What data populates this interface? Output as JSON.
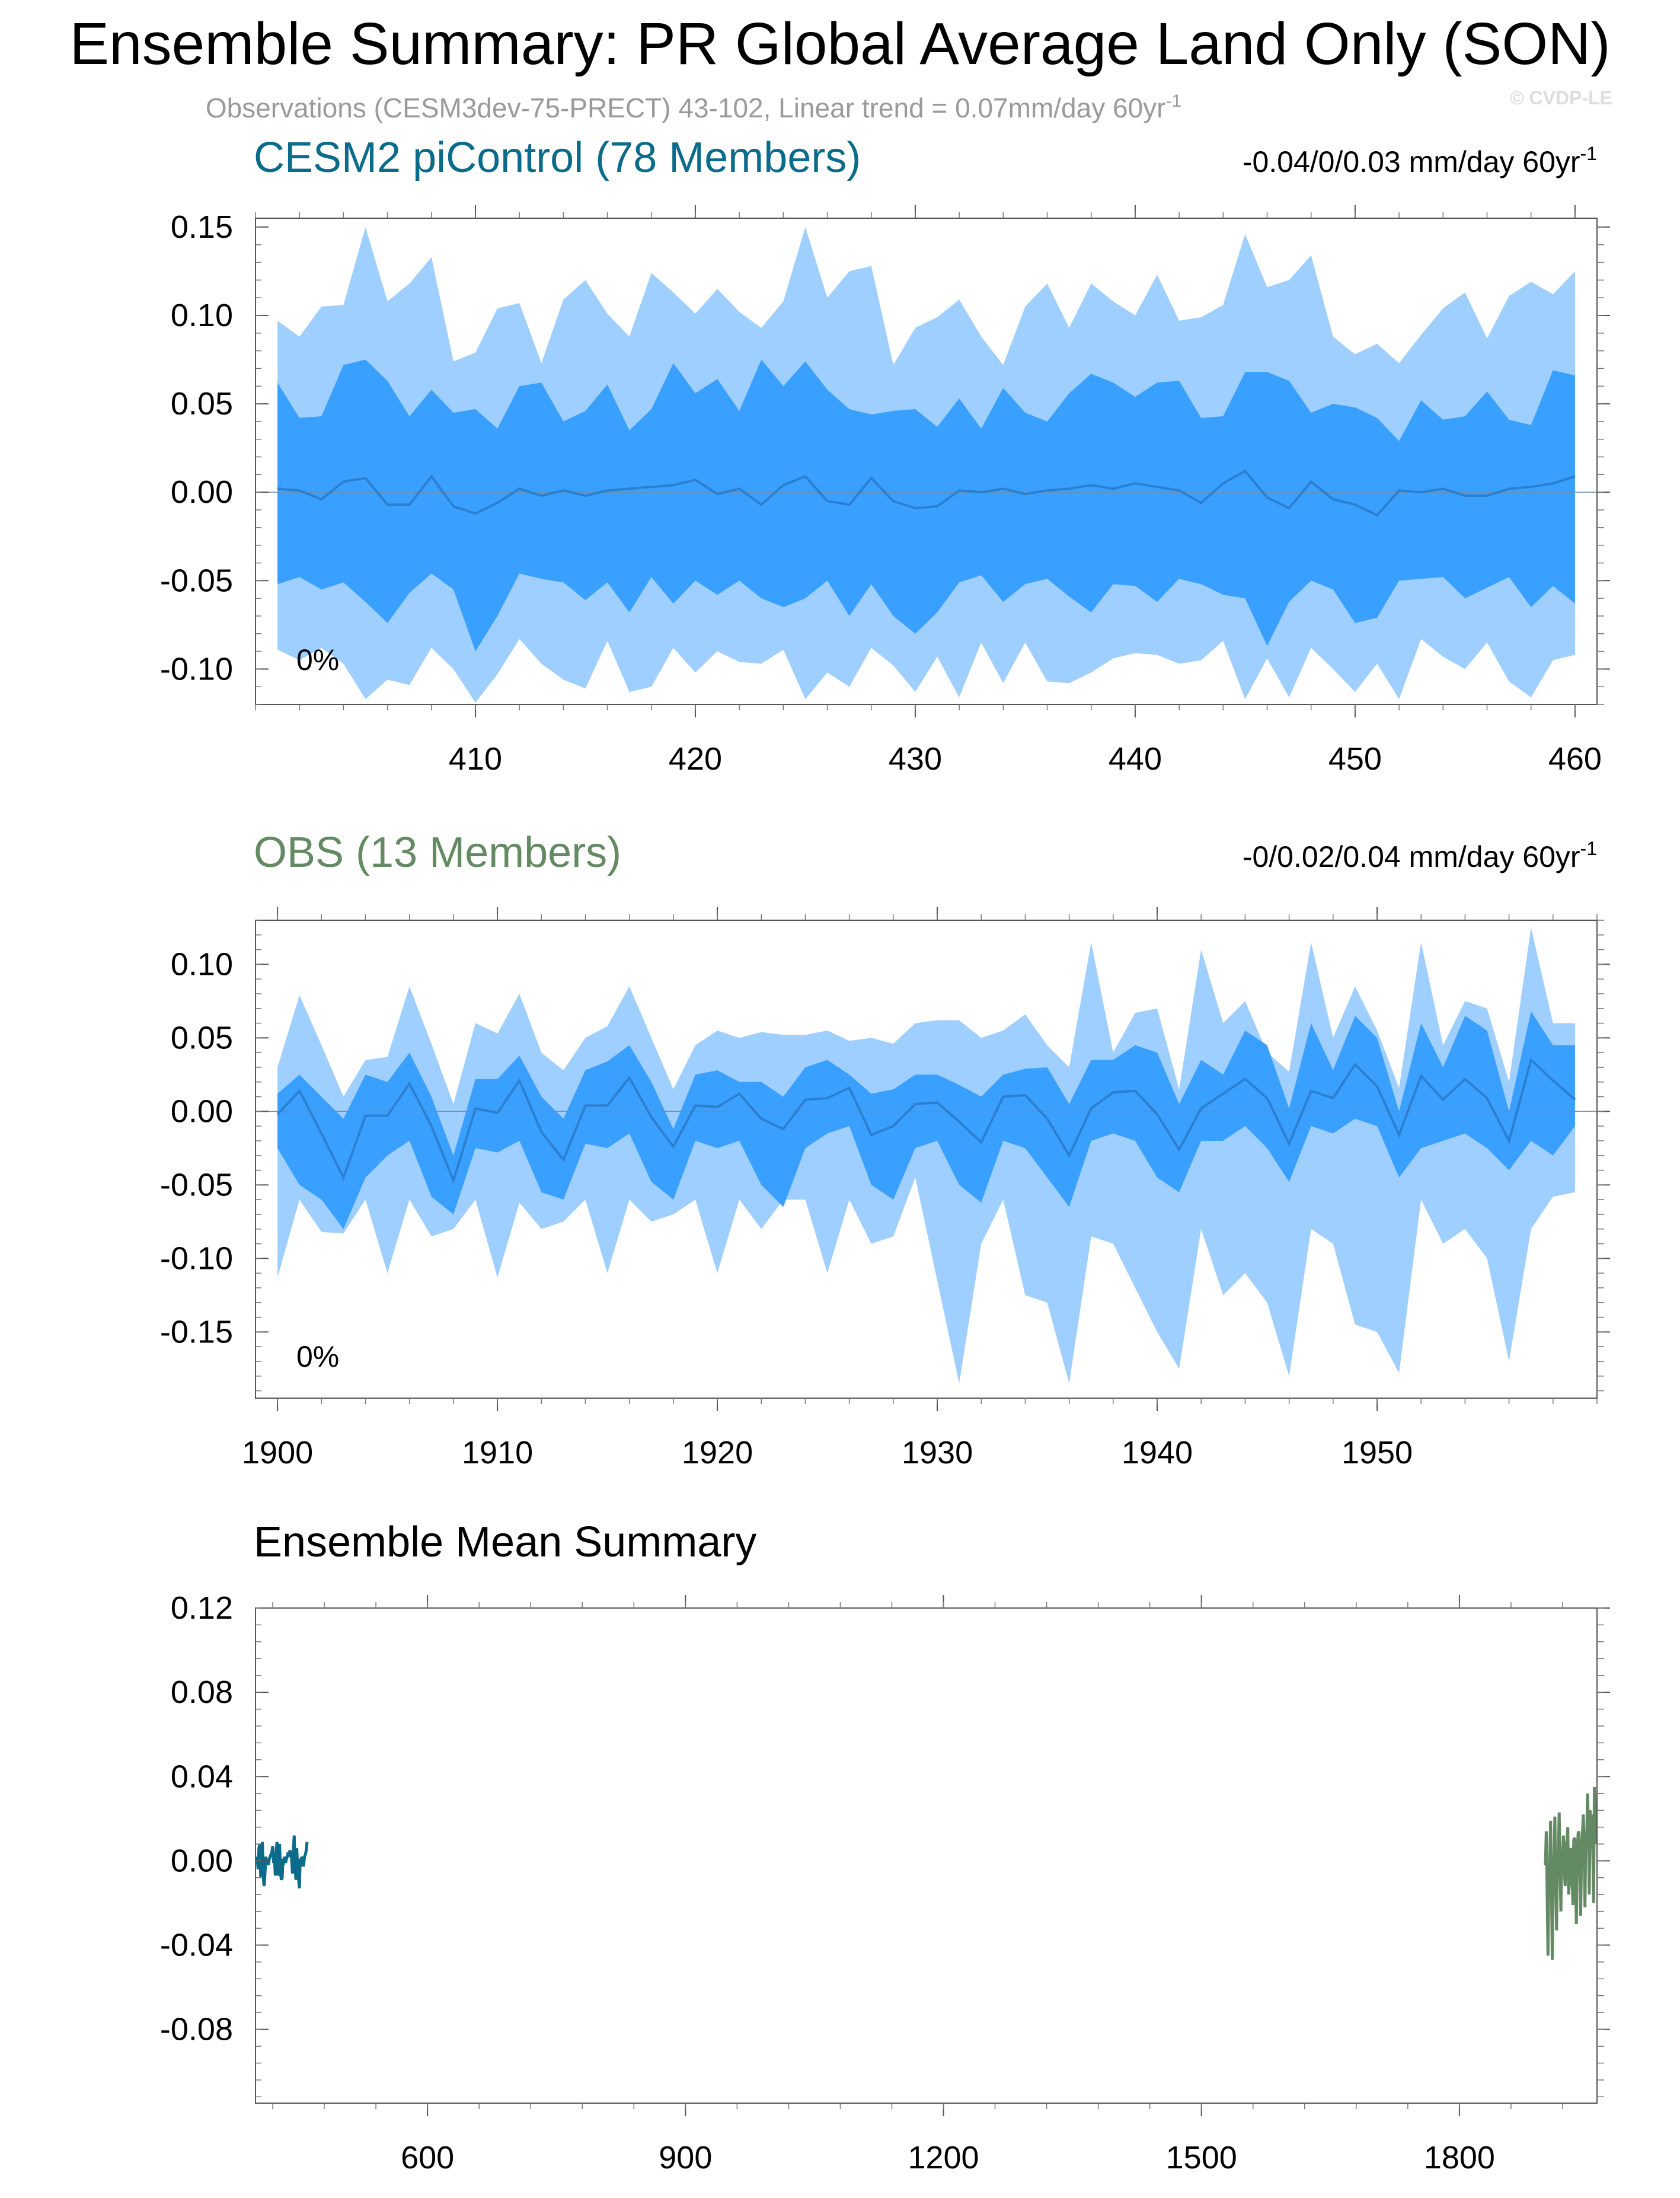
{
  "figure": {
    "title": "Ensemble Summary: PR Global Average Land Only (SON)",
    "subtitle": "Observations (CESM3dev-75-PRECT) 43-102, Linear trend = 0.07mm/day 60yr",
    "subtitle_sup": "-1",
    "watermark": "© CVDP-LE"
  },
  "colors": {
    "band_outer": "#9fcfff",
    "band_inner": "#3aa0ff",
    "mean_line": "#2b7fd0",
    "cesm_title": "#0b6b8a",
    "obs_title": "#638a63",
    "axis": "#000000",
    "subtitle": "#9a9a9a"
  },
  "panels": {
    "cesm": {
      "title": "CESM2 piControl (78 Members)",
      "trend_label": "-0.04/0/0.03 mm/day 60yr",
      "trend_sup": "-1",
      "percent_label": "0%"
    },
    "obs": {
      "title": "OBS (13 Members)",
      "trend_label": "-0/0.02/0.04 mm/day 60yr",
      "trend_sup": "-1",
      "percent_label": "0%"
    },
    "summary": {
      "title": "Ensemble Mean Summary"
    }
  },
  "chart_data": [
    {
      "id": "cesm",
      "type": "area",
      "x_start": 401,
      "x_end": 460,
      "xlim": [
        400,
        461
      ],
      "ylim": [
        -0.12,
        0.155
      ],
      "xticks": [
        410,
        420,
        430,
        440,
        450,
        460
      ],
      "yticks": [
        0.15,
        0.1,
        0.05,
        0.0,
        -0.05,
        -0.1
      ],
      "ytick_labels": [
        "0.15",
        "0.10",
        "0.05",
        "0.00",
        "-0.05",
        "-0.10"
      ],
      "series": [
        {
          "role": "outer_upper",
          "values": [
            0.097,
            0.088,
            0.105,
            0.106,
            0.15,
            0.108,
            0.118,
            0.133,
            0.074,
            0.079,
            0.104,
            0.107,
            0.073,
            0.109,
            0.12,
            0.101,
            0.088,
            0.124,
            0.113,
            0.101,
            0.115,
            0.102,
            0.093,
            0.108,
            0.15,
            0.11,
            0.125,
            0.128,
            0.072,
            0.093,
            0.099,
            0.109,
            0.088,
            0.072,
            0.105,
            0.118,
            0.093,
            0.118,
            0.108,
            0.1,
            0.123,
            0.097,
            0.099,
            0.106,
            0.146,
            0.116,
            0.12,
            0.134,
            0.088,
            0.078,
            0.084,
            0.073,
            0.089,
            0.104,
            0.113,
            0.087,
            0.111,
            0.119,
            0.112,
            0.125
          ]
        },
        {
          "role": "inner_upper",
          "values": [
            0.062,
            0.042,
            0.043,
            0.072,
            0.075,
            0.063,
            0.043,
            0.058,
            0.045,
            0.047,
            0.036,
            0.06,
            0.062,
            0.04,
            0.046,
            0.061,
            0.035,
            0.047,
            0.073,
            0.056,
            0.064,
            0.046,
            0.075,
            0.06,
            0.074,
            0.058,
            0.047,
            0.044,
            0.046,
            0.047,
            0.037,
            0.053,
            0.036,
            0.059,
            0.045,
            0.04,
            0.056,
            0.067,
            0.062,
            0.054,
            0.062,
            0.063,
            0.042,
            0.043,
            0.068,
            0.068,
            0.063,
            0.045,
            0.05,
            0.048,
            0.042,
            0.029,
            0.052,
            0.041,
            0.043,
            0.057,
            0.041,
            0.038,
            0.069,
            0.066
          ]
        },
        {
          "role": "mean",
          "values": [
            0.002,
            0.001,
            -0.004,
            0.006,
            0.008,
            -0.007,
            -0.007,
            0.009,
            -0.008,
            -0.012,
            -0.006,
            0.002,
            -0.002,
            0.001,
            -0.002,
            0.001,
            0.002,
            0.003,
            0.004,
            0.007,
            -0.001,
            0.002,
            -0.007,
            0.004,
            0.009,
            -0.005,
            -0.007,
            0.008,
            -0.005,
            -0.009,
            -0.008,
            0.001,
            0.0,
            0.002,
            -0.001,
            0.001,
            0.002,
            0.004,
            0.002,
            0.005,
            0.003,
            0.001,
            -0.006,
            0.005,
            0.012,
            -0.003,
            -0.009,
            0.006,
            -0.004,
            -0.007,
            -0.013,
            0.001,
            0.0,
            0.002,
            -0.002,
            -0.002,
            0.002,
            0.003,
            0.005,
            0.009
          ]
        },
        {
          "role": "inner_lower",
          "values": [
            -0.052,
            -0.048,
            -0.055,
            -0.051,
            -0.062,
            -0.074,
            -0.057,
            -0.046,
            -0.055,
            -0.09,
            -0.07,
            -0.046,
            -0.049,
            -0.051,
            -0.061,
            -0.051,
            -0.068,
            -0.048,
            -0.063,
            -0.05,
            -0.058,
            -0.05,
            -0.06,
            -0.065,
            -0.06,
            -0.05,
            -0.07,
            -0.052,
            -0.07,
            -0.08,
            -0.068,
            -0.051,
            -0.047,
            -0.062,
            -0.052,
            -0.049,
            -0.059,
            -0.068,
            -0.052,
            -0.053,
            -0.062,
            -0.049,
            -0.052,
            -0.058,
            -0.06,
            -0.087,
            -0.062,
            -0.05,
            -0.055,
            -0.074,
            -0.071,
            -0.05,
            -0.049,
            -0.048,
            -0.06,
            -0.054,
            -0.048,
            -0.065,
            -0.053,
            -0.063
          ]
        },
        {
          "role": "outer_lower",
          "values": [
            -0.089,
            -0.095,
            -0.088,
            -0.097,
            -0.117,
            -0.106,
            -0.109,
            -0.088,
            -0.1,
            -0.119,
            -0.103,
            -0.083,
            -0.097,
            -0.106,
            -0.111,
            -0.084,
            -0.113,
            -0.11,
            -0.088,
            -0.102,
            -0.09,
            -0.096,
            -0.097,
            -0.089,
            -0.117,
            -0.102,
            -0.11,
            -0.088,
            -0.098,
            -0.113,
            -0.093,
            -0.116,
            -0.085,
            -0.108,
            -0.085,
            -0.107,
            -0.108,
            -0.102,
            -0.094,
            -0.091,
            -0.092,
            -0.097,
            -0.095,
            -0.084,
            -0.117,
            -0.094,
            -0.116,
            -0.088,
            -0.1,
            -0.113,
            -0.097,
            -0.117,
            -0.083,
            -0.093,
            -0.1,
            -0.085,
            -0.107,
            -0.116,
            -0.095,
            -0.092
          ]
        }
      ]
    },
    {
      "id": "obs",
      "type": "area",
      "x_start": 1900,
      "x_end": 1959,
      "xlim": [
        1899,
        1960
      ],
      "ylim": [
        -0.195,
        0.13
      ],
      "xticks": [
        1900,
        1910,
        1920,
        1930,
        1940,
        1950
      ],
      "yticks": [
        0.1,
        0.05,
        0.0,
        -0.05,
        -0.1,
        -0.15
      ],
      "ytick_labels": [
        "0.10",
        "0.05",
        "0.00",
        "-0.05",
        "-0.10",
        "-0.15"
      ],
      "series": [
        {
          "role": "outer_upper",
          "values": [
            0.03,
            0.079,
            0.045,
            0.01,
            0.035,
            0.037,
            0.085,
            0.046,
            0.005,
            0.06,
            0.053,
            0.08,
            0.04,
            0.028,
            0.05,
            0.058,
            0.085,
            0.05,
            0.015,
            0.045,
            0.055,
            0.05,
            0.054,
            0.052,
            0.052,
            0.055,
            0.048,
            0.05,
            0.046,
            0.06,
            0.062,
            0.062,
            0.05,
            0.055,
            0.066,
            0.045,
            0.03,
            0.115,
            0.04,
            0.067,
            0.07,
            0.015,
            0.11,
            0.06,
            0.075,
            0.04,
            0.027,
            0.115,
            0.05,
            0.085,
            0.055,
            0.016,
            0.115,
            0.045,
            0.075,
            0.07,
            0.02,
            0.125,
            0.06,
            0.06
          ]
        },
        {
          "role": "inner_upper",
          "values": [
            0.012,
            0.025,
            0.01,
            -0.005,
            0.025,
            0.02,
            0.04,
            0.01,
            -0.03,
            0.022,
            0.022,
            0.038,
            0.01,
            -0.005,
            0.028,
            0.034,
            0.045,
            0.02,
            -0.012,
            0.025,
            0.028,
            0.02,
            0.02,
            0.01,
            0.03,
            0.035,
            0.025,
            0.012,
            0.015,
            0.025,
            0.025,
            0.018,
            0.01,
            0.025,
            0.029,
            0.03,
            0.005,
            0.035,
            0.035,
            0.045,
            0.04,
            0.005,
            0.035,
            0.025,
            0.055,
            0.045,
            0.002,
            0.06,
            0.028,
            0.065,
            0.05,
            0.0,
            0.06,
            0.03,
            0.065,
            0.055,
            0.0,
            0.068,
            0.045,
            0.045
          ]
        },
        {
          "role": "mean",
          "values": [
            -0.002,
            0.014,
            -0.015,
            -0.045,
            -0.003,
            -0.003,
            0.019,
            -0.01,
            -0.047,
            0.002,
            -0.001,
            0.021,
            -0.014,
            -0.033,
            0.004,
            0.004,
            0.023,
            -0.004,
            -0.024,
            0.004,
            0.003,
            0.012,
            -0.005,
            -0.012,
            0.008,
            0.009,
            0.016,
            -0.016,
            -0.01,
            0.005,
            0.006,
            -0.007,
            -0.021,
            0.01,
            0.011,
            -0.005,
            -0.03,
            0.002,
            0.013,
            0.014,
            -0.002,
            -0.026,
            0.002,
            0.012,
            0.022,
            0.009,
            -0.022,
            0.014,
            0.009,
            0.032,
            0.017,
            -0.016,
            0.024,
            0.008,
            0.022,
            0.009,
            -0.02,
            0.035,
            0.021,
            0.008
          ]
        },
        {
          "role": "inner_lower",
          "values": [
            -0.025,
            -0.05,
            -0.06,
            -0.08,
            -0.045,
            -0.03,
            -0.02,
            -0.058,
            -0.07,
            -0.025,
            -0.028,
            -0.02,
            -0.055,
            -0.06,
            -0.022,
            -0.025,
            -0.015,
            -0.048,
            -0.06,
            -0.02,
            -0.025,
            -0.02,
            -0.05,
            -0.065,
            -0.025,
            -0.015,
            -0.01,
            -0.05,
            -0.06,
            -0.025,
            -0.02,
            -0.05,
            -0.062,
            -0.02,
            -0.025,
            -0.045,
            -0.065,
            -0.02,
            -0.015,
            -0.02,
            -0.045,
            -0.055,
            -0.02,
            -0.02,
            -0.01,
            -0.025,
            -0.048,
            -0.01,
            -0.015,
            -0.005,
            -0.01,
            -0.045,
            -0.025,
            -0.02,
            -0.015,
            -0.025,
            -0.04,
            -0.02,
            -0.03,
            -0.01
          ]
        },
        {
          "role": "outer_lower",
          "values": [
            -0.113,
            -0.06,
            -0.082,
            -0.083,
            -0.06,
            -0.11,
            -0.06,
            -0.085,
            -0.08,
            -0.06,
            -0.113,
            -0.062,
            -0.08,
            -0.075,
            -0.06,
            -0.11,
            -0.06,
            -0.075,
            -0.07,
            -0.06,
            -0.11,
            -0.06,
            -0.08,
            -0.06,
            -0.06,
            -0.11,
            -0.06,
            -0.09,
            -0.085,
            -0.045,
            -0.115,
            -0.185,
            -0.09,
            -0.06,
            -0.125,
            -0.13,
            -0.185,
            -0.085,
            -0.09,
            -0.12,
            -0.15,
            -0.175,
            -0.08,
            -0.125,
            -0.11,
            -0.13,
            -0.18,
            -0.08,
            -0.09,
            -0.145,
            -0.15,
            -0.178,
            -0.06,
            -0.09,
            -0.08,
            -0.1,
            -0.17,
            -0.08,
            -0.058,
            -0.055
          ]
        }
      ]
    },
    {
      "id": "summary",
      "type": "line",
      "xlim": [
        400,
        1960
      ],
      "ylim": [
        -0.115,
        0.12
      ],
      "xticks": [
        600,
        900,
        1200,
        1500,
        1800
      ],
      "yticks": [
        0.12,
        0.08,
        0.04,
        0.0,
        -0.04,
        -0.08
      ],
      "ytick_labels": [
        "0.12",
        "0.08",
        "0.04",
        "0.00",
        "-0.04",
        "-0.08"
      ],
      "series": [
        {
          "name": "CESM2 piControl",
          "color": "#0b6b8a",
          "x_start": 401,
          "role": "cesm_mean_ref"
        },
        {
          "name": "OBS",
          "color": "#638a63",
          "x_start": 1900,
          "role": "obs_mean_ref"
        }
      ]
    }
  ]
}
